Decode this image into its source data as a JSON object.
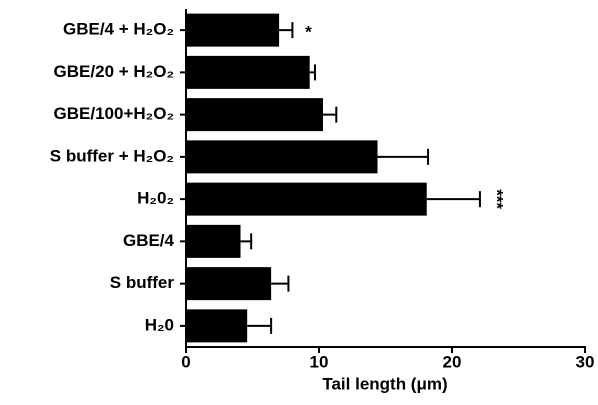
{
  "chart_data": {
    "type": "hbar",
    "x_label": "Tail length (μm)",
    "categories": [
      "GBE/4 + H₂O₂",
      "GBE/20 + H₂O₂",
      "GBE/100+H₂O₂",
      "S buffer + H₂O₂",
      "H₂0₂",
      "GBE/4",
      "S buffer",
      "H₂0"
    ],
    "values": [
      7.0,
      9.3,
      10.3,
      14.4,
      18.1,
      4.1,
      6.4,
      4.6
    ],
    "errors": [
      1.0,
      0.4,
      1.0,
      3.8,
      4.0,
      0.8,
      1.3,
      1.8
    ],
    "annotations": [
      "*",
      null,
      null,
      null,
      "***",
      null,
      null,
      null
    ],
    "color": "#000000",
    "xlim": [
      0,
      30
    ],
    "xticks": [
      0,
      10,
      20,
      30
    ],
    "grid": false
  }
}
